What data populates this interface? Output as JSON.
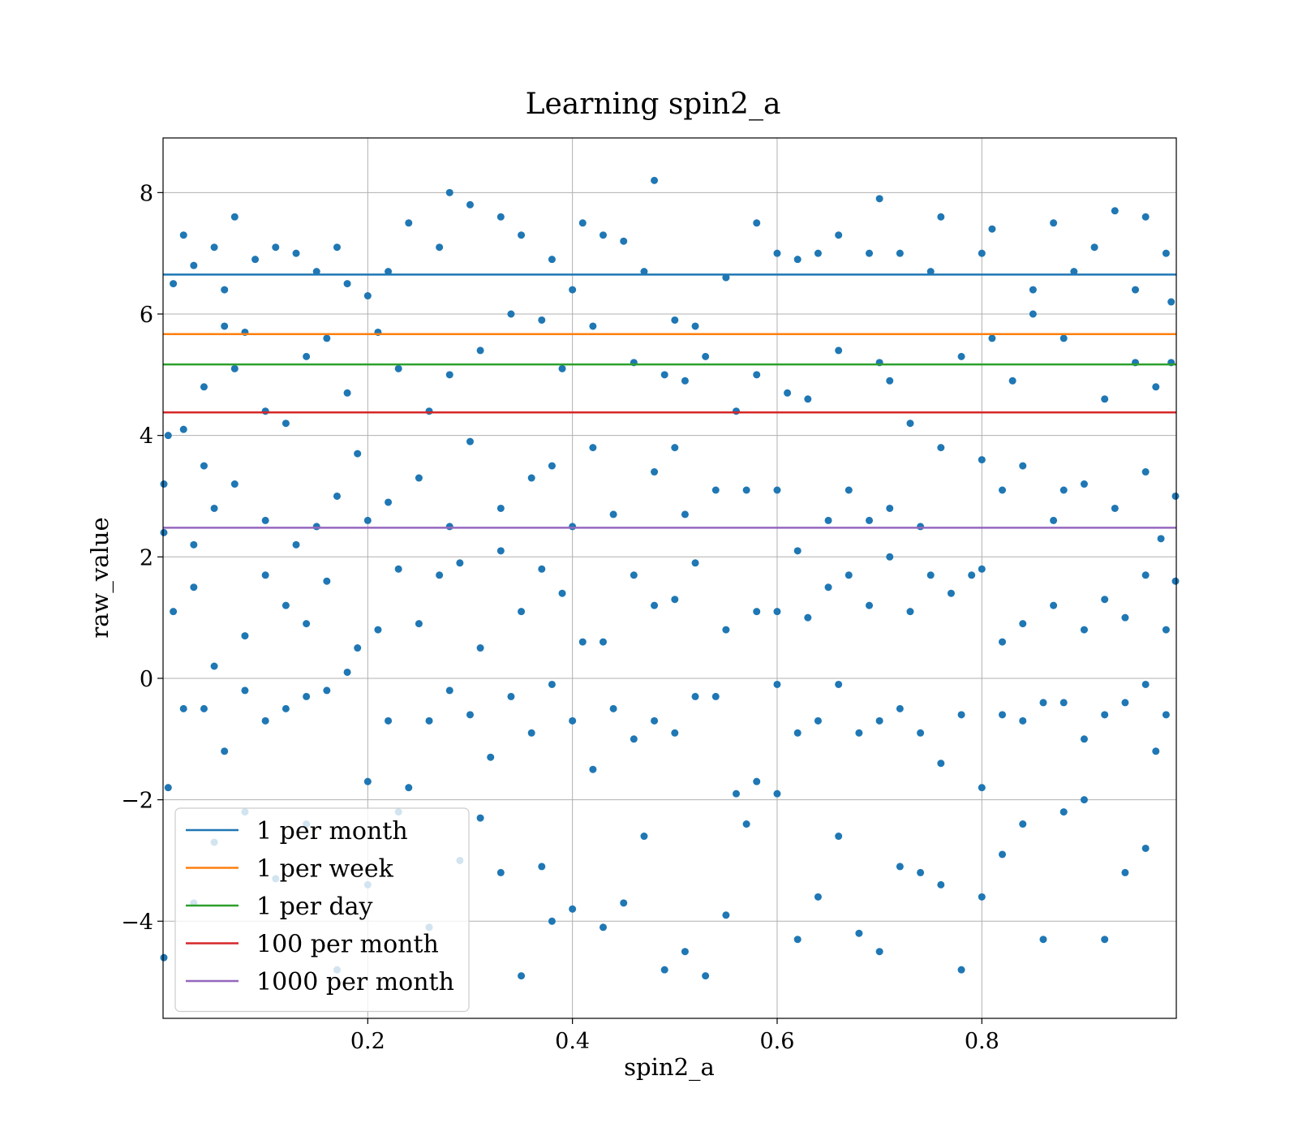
{
  "chart_data": {
    "type": "scatter",
    "title": "Learning spin2_a",
    "xlabel": "spin2_a",
    "ylabel": "raw_value",
    "xlim": [
      0.0,
      0.99
    ],
    "ylim": [
      -5.6,
      8.9
    ],
    "xticks": [
      0.2,
      0.4,
      0.6,
      0.8
    ],
    "xtick_labels": [
      "0.2",
      "0.4",
      "0.6",
      "0.8"
    ],
    "yticks": [
      -4,
      -2,
      0,
      2,
      4,
      6,
      8
    ],
    "ytick_labels": [
      "−4",
      "−2",
      "0",
      "2",
      "4",
      "6",
      "8"
    ],
    "grid": true,
    "legend_position": "lower-left",
    "scatter_color": "#1f77b4",
    "scatter_series": {
      "points": [
        [
          0.005,
          4.0
        ],
        [
          0.01,
          6.5
        ],
        [
          0.02,
          7.3
        ],
        [
          0.03,
          6.8
        ],
        [
          0.04,
          4.8
        ],
        [
          0.05,
          7.1
        ],
        [
          0.06,
          6.4
        ],
        [
          0.07,
          7.6
        ],
        [
          0.08,
          5.7
        ],
        [
          0.09,
          6.9
        ],
        [
          0.11,
          7.1
        ],
        [
          0.13,
          7.0
        ],
        [
          0.15,
          6.7
        ],
        [
          0.17,
          7.1
        ],
        [
          0.18,
          6.5
        ],
        [
          0.2,
          6.3
        ],
        [
          0.22,
          6.7
        ],
        [
          0.24,
          7.5
        ],
        [
          0.27,
          7.1
        ],
        [
          0.28,
          8.0
        ],
        [
          0.3,
          7.8
        ],
        [
          0.33,
          7.6
        ],
        [
          0.35,
          7.3
        ],
        [
          0.38,
          6.9
        ],
        [
          0.4,
          6.4
        ],
        [
          0.41,
          7.5
        ],
        [
          0.43,
          7.3
        ],
        [
          0.45,
          7.2
        ],
        [
          0.47,
          6.7
        ],
        [
          0.48,
          8.2
        ],
        [
          0.5,
          5.9
        ],
        [
          0.52,
          5.8
        ],
        [
          0.55,
          6.6
        ],
        [
          0.58,
          7.5
        ],
        [
          0.6,
          7.0
        ],
        [
          0.62,
          6.9
        ],
        [
          0.64,
          7.0
        ],
        [
          0.66,
          7.3
        ],
        [
          0.69,
          7.0
        ],
        [
          0.7,
          7.9
        ],
        [
          0.72,
          7.0
        ],
        [
          0.75,
          6.7
        ],
        [
          0.76,
          7.6
        ],
        [
          0.8,
          7.0
        ],
        [
          0.81,
          7.4
        ],
        [
          0.85,
          6.4
        ],
        [
          0.87,
          7.5
        ],
        [
          0.89,
          6.7
        ],
        [
          0.91,
          7.1
        ],
        [
          0.93,
          7.7
        ],
        [
          0.95,
          6.4
        ],
        [
          0.96,
          7.6
        ],
        [
          0.98,
          7.0
        ],
        [
          0.985,
          6.2
        ],
        [
          0.02,
          4.1
        ],
        [
          0.04,
          3.5
        ],
        [
          0.06,
          5.8
        ],
        [
          0.07,
          5.1
        ],
        [
          0.1,
          4.4
        ],
        [
          0.12,
          4.2
        ],
        [
          0.14,
          5.3
        ],
        [
          0.16,
          5.6
        ],
        [
          0.18,
          4.7
        ],
        [
          0.21,
          5.7
        ],
        [
          0.23,
          5.1
        ],
        [
          0.26,
          4.4
        ],
        [
          0.28,
          5.0
        ],
        [
          0.31,
          5.4
        ],
        [
          0.34,
          6.0
        ],
        [
          0.37,
          5.9
        ],
        [
          0.39,
          5.1
        ],
        [
          0.42,
          5.8
        ],
        [
          0.46,
          5.2
        ],
        [
          0.49,
          5.0
        ],
        [
          0.51,
          4.9
        ],
        [
          0.53,
          5.3
        ],
        [
          0.56,
          4.4
        ],
        [
          0.58,
          5.0
        ],
        [
          0.61,
          4.7
        ],
        [
          0.63,
          4.6
        ],
        [
          0.66,
          5.4
        ],
        [
          0.7,
          5.2
        ],
        [
          0.71,
          4.9
        ],
        [
          0.73,
          4.2
        ],
        [
          0.78,
          5.3
        ],
        [
          0.81,
          5.6
        ],
        [
          0.83,
          4.9
        ],
        [
          0.85,
          6.0
        ],
        [
          0.88,
          5.6
        ],
        [
          0.92,
          4.6
        ],
        [
          0.95,
          5.2
        ],
        [
          0.97,
          4.8
        ],
        [
          0.985,
          5.2
        ],
        [
          0.0,
          3.2
        ],
        [
          0.03,
          2.2
        ],
        [
          0.05,
          2.8
        ],
        [
          0.07,
          3.2
        ],
        [
          0.1,
          2.6
        ],
        [
          0.13,
          2.2
        ],
        [
          0.15,
          2.5
        ],
        [
          0.17,
          3.0
        ],
        [
          0.19,
          3.7
        ],
        [
          0.2,
          2.6
        ],
        [
          0.22,
          2.9
        ],
        [
          0.25,
          3.3
        ],
        [
          0.28,
          2.5
        ],
        [
          0.3,
          3.9
        ],
        [
          0.33,
          2.8
        ],
        [
          0.36,
          3.3
        ],
        [
          0.38,
          3.5
        ],
        [
          0.4,
          2.5
        ],
        [
          0.42,
          3.8
        ],
        [
          0.44,
          2.7
        ],
        [
          0.48,
          3.4
        ],
        [
          0.5,
          3.8
        ],
        [
          0.51,
          2.7
        ],
        [
          0.54,
          3.1
        ],
        [
          0.57,
          3.1
        ],
        [
          0.6,
          3.1
        ],
        [
          0.62,
          2.1
        ],
        [
          0.65,
          2.6
        ],
        [
          0.67,
          3.1
        ],
        [
          0.69,
          2.6
        ],
        [
          0.71,
          2.8
        ],
        [
          0.74,
          2.5
        ],
        [
          0.76,
          3.8
        ],
        [
          0.8,
          3.6
        ],
        [
          0.82,
          3.1
        ],
        [
          0.84,
          3.5
        ],
        [
          0.87,
          2.6
        ],
        [
          0.88,
          3.1
        ],
        [
          0.9,
          3.2
        ],
        [
          0.93,
          2.8
        ],
        [
          0.96,
          3.4
        ],
        [
          0.975,
          2.3
        ],
        [
          0.99,
          3.0
        ],
        [
          0.0,
          2.4
        ],
        [
          0.01,
          1.1
        ],
        [
          0.03,
          1.5
        ],
        [
          0.05,
          0.2
        ],
        [
          0.08,
          0.7
        ],
        [
          0.1,
          1.7
        ],
        [
          0.12,
          1.2
        ],
        [
          0.14,
          0.9
        ],
        [
          0.16,
          1.6
        ],
        [
          0.19,
          0.5
        ],
        [
          0.21,
          0.8
        ],
        [
          0.23,
          1.8
        ],
        [
          0.25,
          0.9
        ],
        [
          0.27,
          1.7
        ],
        [
          0.29,
          1.9
        ],
        [
          0.31,
          0.5
        ],
        [
          0.33,
          2.1
        ],
        [
          0.35,
          1.1
        ],
        [
          0.37,
          1.8
        ],
        [
          0.39,
          1.4
        ],
        [
          0.41,
          0.6
        ],
        [
          0.43,
          0.6
        ],
        [
          0.46,
          1.7
        ],
        [
          0.48,
          1.2
        ],
        [
          0.5,
          1.3
        ],
        [
          0.52,
          1.9
        ],
        [
          0.55,
          0.8
        ],
        [
          0.58,
          1.1
        ],
        [
          0.6,
          1.1
        ],
        [
          0.63,
          1.0
        ],
        [
          0.65,
          1.5
        ],
        [
          0.67,
          1.7
        ],
        [
          0.69,
          1.2
        ],
        [
          0.71,
          2.0
        ],
        [
          0.73,
          1.1
        ],
        [
          0.75,
          1.7
        ],
        [
          0.77,
          1.4
        ],
        [
          0.79,
          1.7
        ],
        [
          0.8,
          1.8
        ],
        [
          0.82,
          0.6
        ],
        [
          0.84,
          0.9
        ],
        [
          0.87,
          1.2
        ],
        [
          0.9,
          0.8
        ],
        [
          0.92,
          1.3
        ],
        [
          0.94,
          1.0
        ],
        [
          0.96,
          1.7
        ],
        [
          0.98,
          0.8
        ],
        [
          0.99,
          1.6
        ],
        [
          0.005,
          -1.8
        ],
        [
          0.02,
          -0.5
        ],
        [
          0.04,
          -0.5
        ],
        [
          0.06,
          -1.2
        ],
        [
          0.08,
          -0.2
        ],
        [
          0.1,
          -0.7
        ],
        [
          0.12,
          -0.5
        ],
        [
          0.14,
          -0.3
        ],
        [
          0.16,
          -0.2
        ],
        [
          0.18,
          0.1
        ],
        [
          0.2,
          -1.7
        ],
        [
          0.22,
          -0.7
        ],
        [
          0.24,
          -1.8
        ],
        [
          0.26,
          -0.7
        ],
        [
          0.28,
          -0.2
        ],
        [
          0.3,
          -0.6
        ],
        [
          0.32,
          -1.3
        ],
        [
          0.34,
          -0.3
        ],
        [
          0.36,
          -0.9
        ],
        [
          0.38,
          -0.1
        ],
        [
          0.4,
          -0.7
        ],
        [
          0.42,
          -1.5
        ],
        [
          0.44,
          -0.5
        ],
        [
          0.46,
          -1.0
        ],
        [
          0.48,
          -0.7
        ],
        [
          0.5,
          -0.9
        ],
        [
          0.52,
          -0.3
        ],
        [
          0.54,
          -0.3
        ],
        [
          0.56,
          -1.9
        ],
        [
          0.58,
          -1.7
        ],
        [
          0.6,
          -0.1
        ],
        [
          0.62,
          -0.9
        ],
        [
          0.64,
          -0.7
        ],
        [
          0.66,
          -0.1
        ],
        [
          0.68,
          -0.9
        ],
        [
          0.7,
          -0.7
        ],
        [
          0.72,
          -0.5
        ],
        [
          0.74,
          -0.9
        ],
        [
          0.76,
          -1.4
        ],
        [
          0.78,
          -0.6
        ],
        [
          0.8,
          -1.8
        ],
        [
          0.82,
          -0.6
        ],
        [
          0.84,
          -0.7
        ],
        [
          0.86,
          -0.4
        ],
        [
          0.88,
          -0.4
        ],
        [
          0.9,
          -1.0
        ],
        [
          0.92,
          -0.6
        ],
        [
          0.94,
          -0.4
        ],
        [
          0.96,
          -0.1
        ],
        [
          0.98,
          -0.6
        ],
        [
          0.0,
          -4.6
        ],
        [
          0.03,
          -3.7
        ],
        [
          0.05,
          -2.7
        ],
        [
          0.08,
          -2.2
        ],
        [
          0.11,
          -3.3
        ],
        [
          0.14,
          -2.4
        ],
        [
          0.17,
          -4.8
        ],
        [
          0.2,
          -3.4
        ],
        [
          0.23,
          -2.2
        ],
        [
          0.26,
          -4.1
        ],
        [
          0.29,
          -3.0
        ],
        [
          0.31,
          -2.3
        ],
        [
          0.33,
          -3.2
        ],
        [
          0.35,
          -4.9
        ],
        [
          0.37,
          -3.1
        ],
        [
          0.38,
          -4.0
        ],
        [
          0.4,
          -3.8
        ],
        [
          0.43,
          -4.1
        ],
        [
          0.45,
          -3.7
        ],
        [
          0.47,
          -2.6
        ],
        [
          0.49,
          -4.8
        ],
        [
          0.51,
          -4.5
        ],
        [
          0.53,
          -4.9
        ],
        [
          0.55,
          -3.9
        ],
        [
          0.57,
          -2.4
        ],
        [
          0.6,
          -1.9
        ],
        [
          0.62,
          -4.3
        ],
        [
          0.64,
          -3.6
        ],
        [
          0.66,
          -2.6
        ],
        [
          0.68,
          -4.2
        ],
        [
          0.7,
          -4.5
        ],
        [
          0.72,
          -3.1
        ],
        [
          0.74,
          -3.2
        ],
        [
          0.76,
          -3.4
        ],
        [
          0.78,
          -4.8
        ],
        [
          0.8,
          -3.6
        ],
        [
          0.82,
          -2.9
        ],
        [
          0.84,
          -2.4
        ],
        [
          0.86,
          -4.3
        ],
        [
          0.88,
          -2.2
        ],
        [
          0.9,
          -2.0
        ],
        [
          0.92,
          -4.3
        ],
        [
          0.94,
          -3.2
        ],
        [
          0.96,
          -2.8
        ],
        [
          0.97,
          -1.2
        ]
      ]
    },
    "series": [
      {
        "name": "1 per month",
        "color": "#1f77b4",
        "y": 6.65
      },
      {
        "name": "1 per week",
        "color": "#ff7f0e",
        "y": 5.67
      },
      {
        "name": "1 per day",
        "color": "#2ca02c",
        "y": 5.17
      },
      {
        "name": "100 per month",
        "color": "#d62728",
        "y": 4.38
      },
      {
        "name": "1000 per month",
        "color": "#9467bd",
        "y": 2.48
      }
    ]
  }
}
